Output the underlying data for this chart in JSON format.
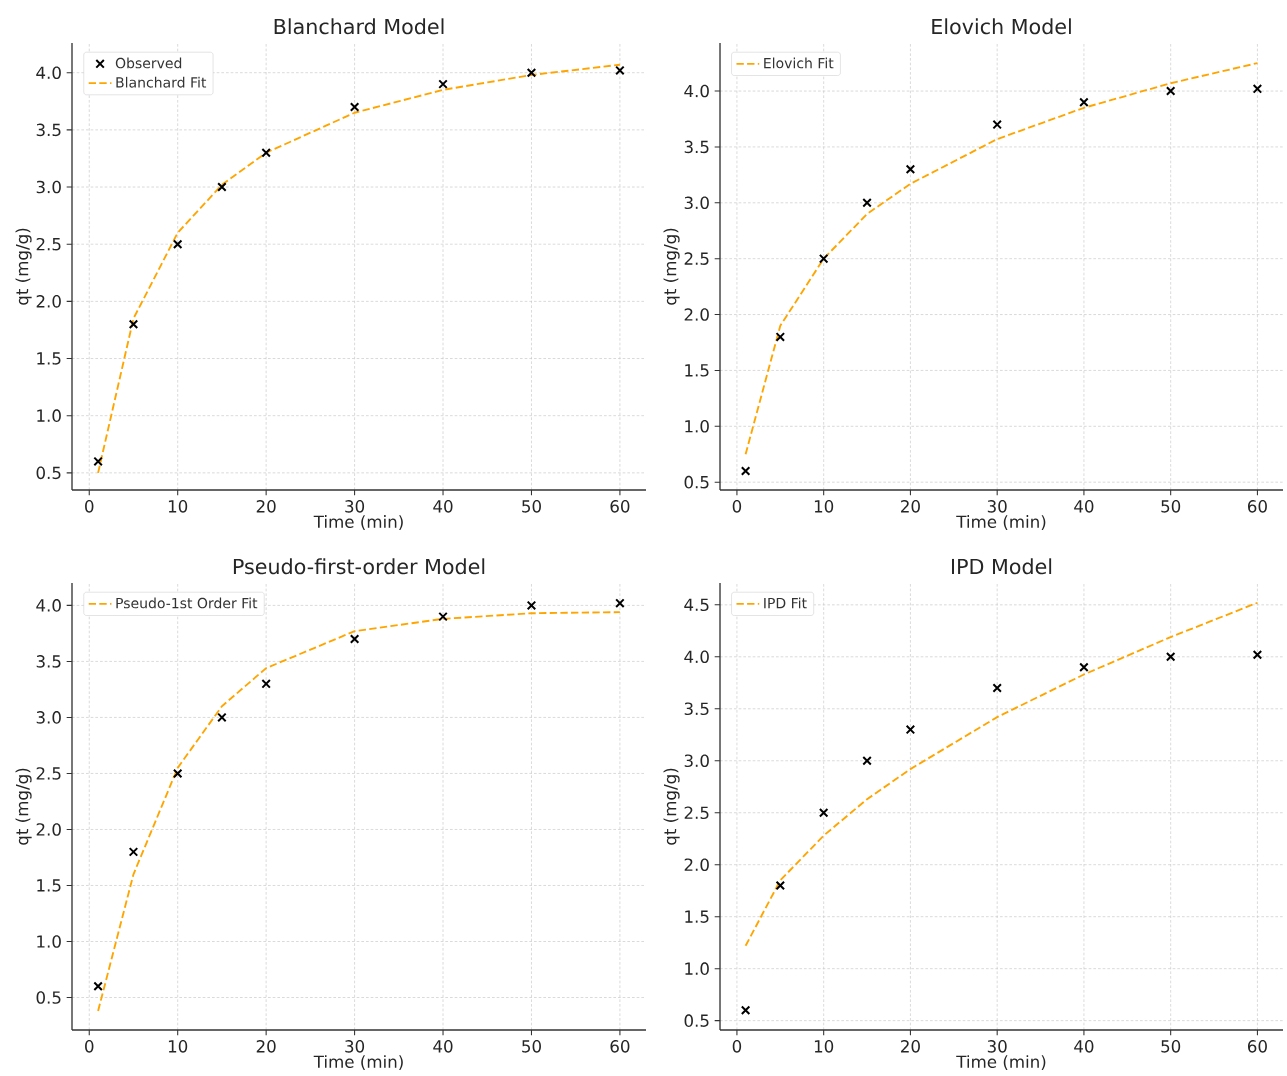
{
  "chart_data": [
    {
      "type": "line",
      "title": "Blanchard Model",
      "xlabel": "Time (min)",
      "ylabel": "qt (mg/g)",
      "xlim": [
        -1.95,
        62.95
      ],
      "ylim": [
        0.35,
        4.26
      ],
      "xticks": [
        0,
        10,
        20,
        30,
        40,
        50,
        60
      ],
      "yticks": [
        0.5,
        {
          "value": 1,
          "label": "1.0"
        },
        1.5,
        {
          "value": 2,
          "label": "2.0"
        },
        2.5,
        {
          "value": 3,
          "label": "3.0"
        },
        3.5,
        {
          "value": 4,
          "label": "4.0"
        }
      ],
      "grid": true,
      "legend": "top left",
      "series": [
        {
          "name": "Observed",
          "type": "scatter",
          "marker": "cross",
          "color": "#000000",
          "x": [
            1,
            5,
            10,
            15,
            20,
            30,
            40,
            50,
            60
          ],
          "values": [
            0.6,
            1.8,
            2.5,
            3.0,
            3.3,
            3.7,
            3.9,
            4.0,
            4.02
          ]
        },
        {
          "name": "Blanchard Fit",
          "line_style": "dashed",
          "color": "#ffa500",
          "x": [
            1,
            5,
            10,
            15,
            20,
            30,
            40,
            50,
            60
          ],
          "values": [
            0.5,
            1.85,
            2.6,
            3.02,
            3.3,
            3.65,
            3.85,
            3.98,
            4.07
          ]
        }
      ]
    },
    {
      "type": "line",
      "title": "Elovich Model",
      "xlabel": "Time (min)",
      "ylabel": "qt (mg/g)",
      "xlim": [
        -1.95,
        62.95
      ],
      "ylim": [
        0.43,
        4.43
      ],
      "xticks": [
        0,
        10,
        20,
        30,
        40,
        50,
        60
      ],
      "yticks": [
        0.5,
        {
          "value": 1,
          "label": "1.0"
        },
        1.5,
        {
          "value": 2,
          "label": "2.0"
        },
        2.5,
        {
          "value": 3,
          "label": "3.0"
        },
        3.5,
        {
          "value": 4,
          "label": "4.0"
        }
      ],
      "grid": true,
      "legend": "top left",
      "series": [
        {
          "type": "scatter",
          "marker": "cross",
          "color": "#000000",
          "x": [
            1,
            5,
            10,
            15,
            20,
            30,
            40,
            50,
            60
          ],
          "values": [
            0.6,
            1.8,
            2.5,
            3.0,
            3.3,
            3.7,
            3.9,
            4.0,
            4.02
          ]
        },
        {
          "name": "Elovich Fit",
          "line_style": "dashed",
          "color": "#ffa500",
          "x": [
            1,
            5,
            10,
            15,
            20,
            30,
            40,
            50,
            60
          ],
          "values": [
            0.75,
            1.9,
            2.5,
            2.9,
            3.17,
            3.57,
            3.85,
            4.07,
            4.25
          ]
        }
      ]
    },
    {
      "type": "line",
      "title": "Pseudo-first-order Model",
      "xlabel": "Time (min)",
      "ylabel": "qt (mg/g)",
      "xlim": [
        -1.95,
        62.95
      ],
      "ylim": [
        0.21,
        4.2
      ],
      "xticks": [
        0,
        10,
        20,
        30,
        40,
        50,
        60
      ],
      "yticks": [
        0.5,
        {
          "value": 1,
          "label": "1.0"
        },
        1.5,
        {
          "value": 2,
          "label": "2.0"
        },
        2.5,
        {
          "value": 3,
          "label": "3.0"
        },
        3.5,
        {
          "value": 4,
          "label": "4.0"
        }
      ],
      "grid": true,
      "legend": "top left",
      "series": [
        {
          "type": "scatter",
          "marker": "cross",
          "color": "#000000",
          "x": [
            1,
            5,
            10,
            15,
            20,
            30,
            40,
            50,
            60
          ],
          "values": [
            0.6,
            1.8,
            2.5,
            3.0,
            3.3,
            3.7,
            3.9,
            4.0,
            4.02
          ]
        },
        {
          "name": "Pseudo-1st Order Fit",
          "line_style": "dashed",
          "color": "#ffa500",
          "x": [
            1,
            5,
            10,
            15,
            20,
            30,
            40,
            50,
            60
          ],
          "values": [
            0.38,
            1.6,
            2.55,
            3.1,
            3.44,
            3.77,
            3.88,
            3.93,
            3.94
          ]
        }
      ]
    },
    {
      "type": "line",
      "title": "IPD Model",
      "xlabel": "Time (min)",
      "ylabel": "qt (mg/g)",
      "xlim": [
        -1.95,
        62.95
      ],
      "ylim": [
        0.41,
        4.71
      ],
      "xticks": [
        0,
        10,
        20,
        30,
        40,
        50,
        60
      ],
      "yticks": [
        0.5,
        {
          "value": 1,
          "label": "1.0"
        },
        1.5,
        {
          "value": 2,
          "label": "2.0"
        },
        2.5,
        {
          "value": 3,
          "label": "3.0"
        },
        3.5,
        {
          "value": 4,
          "label": "4.0"
        },
        4.5
      ],
      "grid": true,
      "legend": "top left",
      "series": [
        {
          "type": "scatter",
          "marker": "cross",
          "color": "#000000",
          "x": [
            1,
            5,
            10,
            15,
            20,
            30,
            40,
            50,
            60
          ],
          "values": [
            0.6,
            1.8,
            2.5,
            3.0,
            3.3,
            3.7,
            3.9,
            4.0,
            4.02
          ]
        },
        {
          "name": "IPD Fit",
          "line_style": "dashed",
          "color": "#ffa500",
          "x": [
            1,
            5,
            10,
            15,
            20,
            30,
            40,
            50,
            60
          ],
          "values": [
            1.22,
            1.85,
            2.28,
            2.63,
            2.92,
            3.42,
            3.83,
            4.19,
            4.52
          ]
        }
      ]
    }
  ]
}
